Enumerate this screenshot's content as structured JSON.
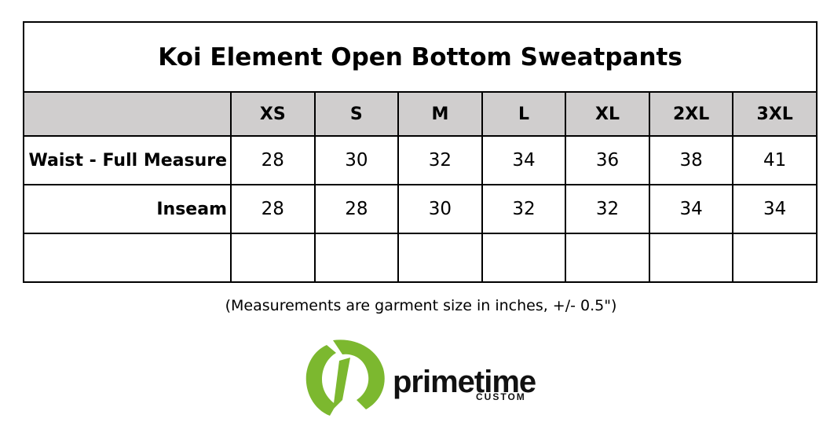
{
  "title": "Koi Element Open Bottom Sweatpants",
  "table": {
    "columns": [
      "XS",
      "S",
      "M",
      "L",
      "XL",
      "2XL",
      "3XL"
    ],
    "rows": [
      {
        "label": "Waist - Full Measure",
        "values": [
          28,
          30,
          32,
          34,
          36,
          38,
          41
        ]
      },
      {
        "label": "Inseam",
        "values": [
          28,
          28,
          30,
          32,
          32,
          34,
          34
        ]
      }
    ]
  },
  "note": "(Measurements are garment size in inches, +/- 0.5\")",
  "logo": {
    "name": "primetime",
    "tagline": "CUSTOM"
  }
}
